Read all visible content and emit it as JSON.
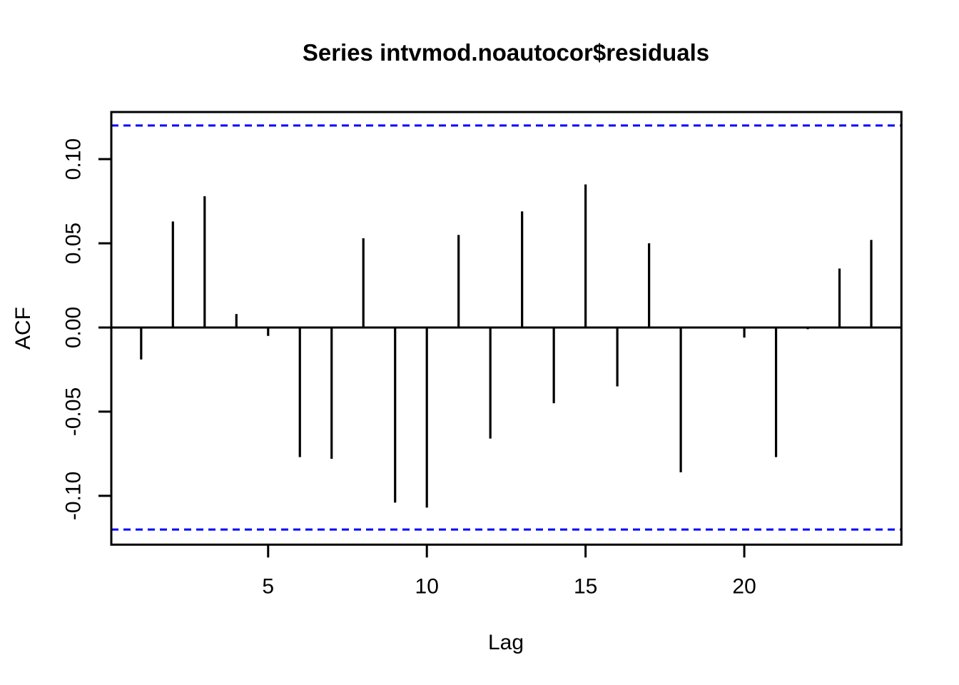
{
  "title": "Series intvmod.noautocor$residuals",
  "chart_data": {
    "type": "bar",
    "subtype": "acf-stem-plot",
    "title": "Series intvmod.noautocor$residuals",
    "xlabel": "Lag",
    "ylabel": "ACF",
    "x": [
      1,
      2,
      3,
      4,
      5,
      6,
      7,
      8,
      9,
      10,
      11,
      12,
      13,
      14,
      15,
      16,
      17,
      18,
      19,
      20,
      21,
      22,
      23,
      24
    ],
    "values": [
      -0.019,
      0.063,
      0.078,
      0.008,
      -0.005,
      -0.077,
      -0.078,
      0.053,
      -0.104,
      -0.107,
      0.055,
      -0.066,
      0.069,
      -0.045,
      0.085,
      -0.035,
      0.05,
      -0.086,
      0.0,
      -0.006,
      -0.077,
      -0.001,
      0.035,
      0.052
    ],
    "confidence_bounds": [
      -0.12,
      0.12
    ],
    "confidence_line_style": "dashed",
    "yticks": [
      0.1,
      0.05,
      0.0,
      -0.05,
      -0.1
    ],
    "ytick_labels": [
      "0.10",
      "0.05",
      "0.00",
      "-0.05",
      "-0.10"
    ],
    "xticks": [
      5,
      10,
      15,
      20
    ],
    "xtick_labels": [
      "5",
      "10",
      "15",
      "20"
    ],
    "ylim": [
      -0.129,
      0.128
    ],
    "xlim": [
      0.06,
      24.95
    ],
    "grid": false,
    "legend": "none",
    "colors": {
      "bars": "#000000",
      "confidence_lines": "#0000FF",
      "axis": "#000000",
      "background": "#FFFFFF"
    }
  }
}
